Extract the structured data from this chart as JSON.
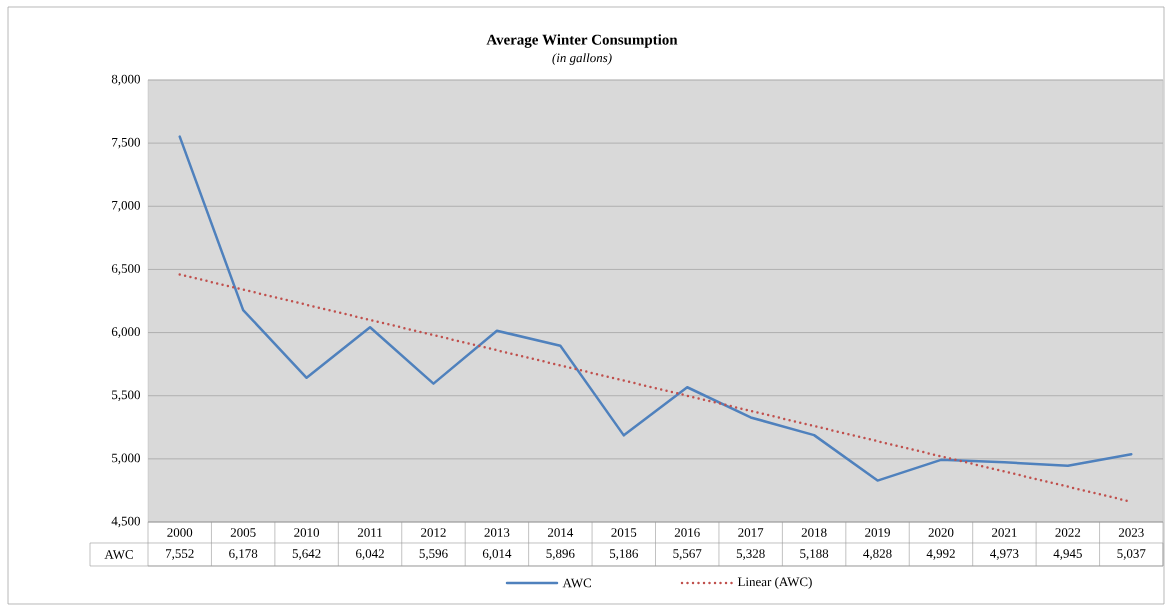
{
  "chart_data": {
    "type": "line",
    "title": "Average Winter Consumption",
    "subtitle": "*(in gallons)*",
    "categories": [
      "2000",
      "2005",
      "2010",
      "2011",
      "2012",
      "2013",
      "2014",
      "2015",
      "2016",
      "2017",
      "2018",
      "2019",
      "2020",
      "2021",
      "2022",
      "2023"
    ],
    "series": [
      {
        "name": "AWC",
        "color": "#4f81bd",
        "values": [
          7552,
          6178,
          5642,
          6042,
          5596,
          6014,
          5896,
          5186,
          5567,
          5328,
          5188,
          4828,
          4992,
          4973,
          4945,
          5037
        ],
        "value_labels": [
          "7,552",
          "6,178",
          "5,642",
          "6,042",
          "5,596",
          "6,014",
          "5,896",
          "5,186",
          "5,567",
          "5,328",
          "5,188",
          "4,828",
          "4,992",
          "4,973",
          "4,945",
          "5,037"
        ]
      },
      {
        "name": "Linear (AWC)",
        "type": "line",
        "line_style": "dotted",
        "color": "#c0504d",
        "values": [
          6460,
          6340,
          6220,
          6100,
          5980,
          5860,
          5740,
          5620,
          5500,
          5380,
          5260,
          5140,
          5020,
          4900,
          4780,
          4660
        ]
      }
    ],
    "ylim": [
      4500,
      8000
    ],
    "yticks": [
      {
        "value": 4500,
        "label": "4,500"
      },
      {
        "value": 5000,
        "label": "5,000"
      },
      {
        "value": 5500,
        "label": "5,500"
      },
      {
        "value": 6000,
        "label": "6,000"
      },
      {
        "value": 6500,
        "label": "6,500"
      },
      {
        "value": 7000,
        "label": "7,000"
      },
      {
        "value": 7500,
        "label": "7,500"
      },
      {
        "value": 8000,
        "label": "8,000"
      }
    ],
    "grid": "y",
    "legend": "bottom",
    "line_style": "solid",
    "marker": "none"
  }
}
